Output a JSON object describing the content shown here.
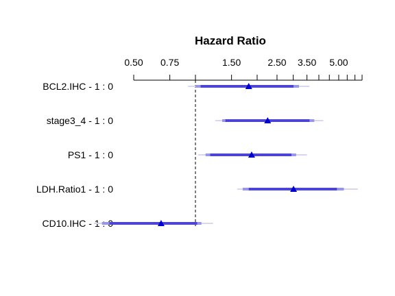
{
  "chart_data": {
    "type": "forest",
    "title": "Hazard Ratio",
    "scale": "log",
    "xlim": [
      0.5,
      6.5
    ],
    "ticks": [
      0.5,
      0.75,
      1.5,
      2.5,
      3.5,
      5.0
    ],
    "tick_labels": [
      "0.50",
      "0.75",
      "1.50",
      "2.50",
      "3.50",
      "5.00"
    ],
    "minor_ticks": [
      1.0,
      2.0,
      3.0,
      4.0,
      4.5,
      5.5,
      6.0,
      6.5
    ],
    "reference_line": 1.0,
    "rows": [
      {
        "label": "BCL2.IHC - 1 : 0",
        "hr": 1.82,
        "ci95": [
          1.06,
          3.01
        ],
        "ci90": [
          1.0,
          3.2
        ],
        "ci80": [
          0.92,
          3.6
        ]
      },
      {
        "label": "stage3_4 - 1 : 0",
        "hr": 2.25,
        "ci95": [
          1.4,
          3.6
        ],
        "ci90": [
          1.35,
          3.8
        ],
        "ci80": [
          1.25,
          4.2
        ]
      },
      {
        "label": "PS1 - 1 : 0",
        "hr": 1.88,
        "ci95": [
          1.18,
          2.94
        ],
        "ci90": [
          1.12,
          3.1
        ],
        "ci80": [
          1.03,
          3.5
        ]
      },
      {
        "label": "LDH.Ratio1 - 1 : 0",
        "hr": 3.01,
        "ci95": [
          1.82,
          4.9
        ],
        "ci90": [
          1.7,
          5.3
        ],
        "ci80": [
          1.6,
          6.2
        ]
      },
      {
        "label": "CD10.IHC - 1 : 0",
        "hr": 0.68,
        "ci95": [
          0.38,
          1.02
        ],
        "ci90": [
          0.35,
          1.07
        ],
        "ci80": [
          0.32,
          1.22
        ]
      }
    ],
    "colors": {
      "point": "#0000cd",
      "ci95": "#4b44d4",
      "ci90": "#9a96e6",
      "ci80": "#d8d6f5",
      "axis": "#000000",
      "ref": "#000000"
    }
  }
}
